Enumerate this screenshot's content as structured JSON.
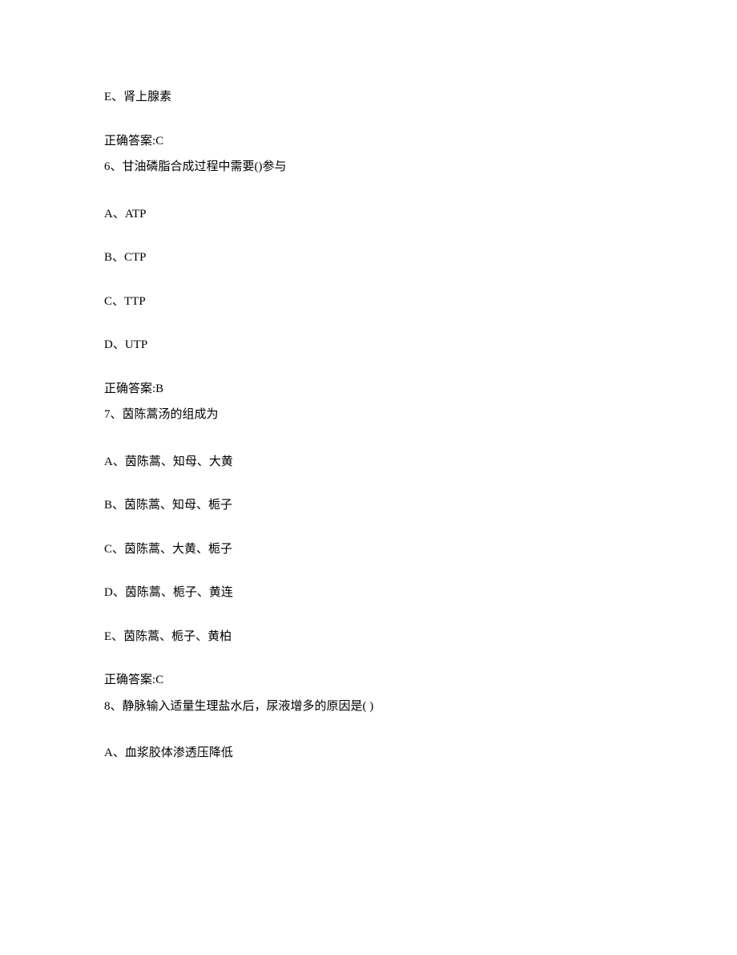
{
  "q5": {
    "option_e": "E、肾上腺素",
    "answer": "正确答案:C"
  },
  "q6": {
    "stem": "6、甘油磷脂合成过程中需要()参与",
    "option_a": "A、ATP",
    "option_b": "B、CTP",
    "option_c": "C、TTP",
    "option_d": "D、UTP",
    "answer": "正确答案:B"
  },
  "q7": {
    "stem": "7、茵陈蒿汤的组成为",
    "option_a": "A、茵陈蒿、知母、大黄",
    "option_b": "B、茵陈蒿、知母、栀子",
    "option_c": "C、茵陈蒿、大黄、栀子",
    "option_d": "D、茵陈蒿、栀子、黄连",
    "option_e": "E、茵陈蒿、栀子、黄柏",
    "answer": "正确答案:C"
  },
  "q8": {
    "stem": "8、静脉输入适量生理盐水后，尿液增多的原因是( )",
    "option_a": "A、血浆胶体渗透压降低"
  }
}
